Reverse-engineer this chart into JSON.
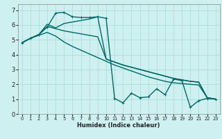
{
  "title": "",
  "xlabel": "Humidex (Indice chaleur)",
  "bg_color": "#cff0f0",
  "grid_color": "#aadddd",
  "line_color": "#006868",
  "xlim": [
    -0.5,
    23.5
  ],
  "ylim": [
    0,
    7.4
  ],
  "xticks": [
    0,
    1,
    2,
    3,
    4,
    5,
    6,
    7,
    8,
    9,
    10,
    11,
    12,
    13,
    14,
    15,
    16,
    17,
    18,
    19,
    20,
    21,
    22,
    23
  ],
  "yticks": [
    0,
    1,
    2,
    3,
    4,
    5,
    6,
    7
  ],
  "series": [
    {
      "y": [
        4.8,
        5.1,
        5.3,
        5.5,
        5.25,
        4.85,
        4.55,
        4.3,
        4.05,
        3.8,
        3.55,
        3.3,
        3.1,
        2.9,
        2.7,
        2.5,
        2.35,
        2.2,
        2.1,
        2.05,
        2.0,
        1.95,
        1.1,
        1.0
      ],
      "marker": null,
      "linewidth": 1.0
    },
    {
      "y": [
        4.8,
        5.1,
        5.35,
        5.85,
        6.8,
        6.85,
        6.55,
        6.5,
        6.5,
        6.55,
        6.45,
        1.05,
        0.75,
        1.4,
        1.1,
        1.15,
        1.7,
        1.3,
        2.35,
        2.25,
        0.45,
        0.9,
        1.05,
        1.0
      ],
      "marker": "+",
      "linewidth": 1.0
    },
    {
      "y": [
        4.8,
        5.1,
        5.35,
        5.9,
        5.75,
        5.6,
        5.5,
        5.4,
        5.3,
        5.2,
        3.7,
        3.5,
        3.3,
        3.15,
        3.0,
        2.85,
        2.7,
        2.55,
        2.4,
        2.3,
        2.2,
        2.15,
        1.1,
        1.0
      ],
      "marker": null,
      "linewidth": 1.0
    },
    {
      "y": [
        4.8,
        5.1,
        5.35,
        6.05,
        5.8,
        6.1,
        6.2,
        6.3,
        6.4,
        6.55,
        3.7,
        3.5,
        3.3,
        3.15,
        3.0,
        2.85,
        2.7,
        2.55,
        2.4,
        2.3,
        2.2,
        2.15,
        1.1,
        1.0
      ],
      "marker": null,
      "linewidth": 1.0
    }
  ]
}
